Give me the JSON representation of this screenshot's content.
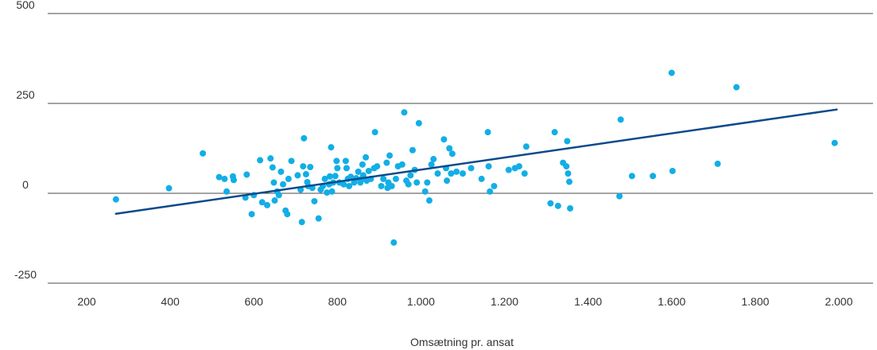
{
  "chart_data": {
    "type": "scatter",
    "title": "",
    "xlabel": "Omsætning pr. ansat",
    "ylabel": "",
    "xlim": [
      200,
      2000
    ],
    "ylim": [
      -250,
      500
    ],
    "x_ticks": [
      {
        "value": 200,
        "label": "200"
      },
      {
        "value": 400,
        "label": "400"
      },
      {
        "value": 600,
        "label": "600"
      },
      {
        "value": 800,
        "label": "800"
      },
      {
        "value": 1000,
        "label": "1.000"
      },
      {
        "value": 1200,
        "label": "1.200"
      },
      {
        "value": 1400,
        "label": "1.400"
      },
      {
        "value": 1600,
        "label": "1.600"
      },
      {
        "value": 1800,
        "label": "1.800"
      },
      {
        "value": 2000,
        "label": "2.000"
      }
    ],
    "y_ticks": [
      {
        "value": 500,
        "label": "500"
      },
      {
        "value": 250,
        "label": "250"
      },
      {
        "value": 0,
        "label": "0"
      },
      {
        "value": -250,
        "label": "-250"
      }
    ],
    "grid": "horizontal",
    "point_color": "#12aee6",
    "trend_color": "#0b4a8b",
    "trendline": {
      "x": [
        270,
        1995
      ],
      "y": [
        -57,
        233
      ]
    },
    "points": [
      [
        270,
        -17
      ],
      [
        397,
        14
      ],
      [
        478,
        111
      ],
      [
        517,
        45
      ],
      [
        530,
        40
      ],
      [
        535,
        5
      ],
      [
        550,
        47
      ],
      [
        552,
        37
      ],
      [
        580,
        -12
      ],
      [
        583,
        52
      ],
      [
        595,
        -58
      ],
      [
        600,
        -5
      ],
      [
        615,
        92
      ],
      [
        620,
        -25
      ],
      [
        632,
        -33
      ],
      [
        640,
        97
      ],
      [
        645,
        72
      ],
      [
        648,
        30
      ],
      [
        650,
        -20
      ],
      [
        656,
        5
      ],
      [
        660,
        -5
      ],
      [
        665,
        60
      ],
      [
        670,
        25
      ],
      [
        676,
        -48
      ],
      [
        680,
        -58
      ],
      [
        683,
        40
      ],
      [
        690,
        90
      ],
      [
        705,
        50
      ],
      [
        715,
        -80
      ],
      [
        712,
        10
      ],
      [
        718,
        75
      ],
      [
        720,
        153
      ],
      [
        725,
        53
      ],
      [
        728,
        31
      ],
      [
        730,
        20
      ],
      [
        735,
        73
      ],
      [
        740,
        15
      ],
      [
        745,
        -22
      ],
      [
        755,
        -70
      ],
      [
        760,
        10
      ],
      [
        765,
        20
      ],
      [
        770,
        40
      ],
      [
        775,
        2
      ],
      [
        780,
        25
      ],
      [
        782,
        47
      ],
      [
        785,
        128
      ],
      [
        787,
        5
      ],
      [
        790,
        30
      ],
      [
        795,
        48
      ],
      [
        798,
        90
      ],
      [
        800,
        70
      ],
      [
        805,
        30
      ],
      [
        815,
        25
      ],
      [
        820,
        90
      ],
      [
        822,
        70
      ],
      [
        825,
        40
      ],
      [
        828,
        20
      ],
      [
        832,
        46
      ],
      [
        840,
        30
      ],
      [
        845,
        42
      ],
      [
        850,
        60
      ],
      [
        855,
        30
      ],
      [
        858,
        40
      ],
      [
        860,
        80
      ],
      [
        862,
        50
      ],
      [
        868,
        100
      ],
      [
        870,
        35
      ],
      [
        875,
        62
      ],
      [
        880,
        40
      ],
      [
        888,
        70
      ],
      [
        890,
        170
      ],
      [
        895,
        75
      ],
      [
        905,
        20
      ],
      [
        910,
        40
      ],
      [
        918,
        85
      ],
      [
        920,
        15
      ],
      [
        922,
        30
      ],
      [
        925,
        105
      ],
      [
        930,
        20
      ],
      [
        935,
        -137
      ],
      [
        940,
        40
      ],
      [
        945,
        75
      ],
      [
        955,
        80
      ],
      [
        960,
        225
      ],
      [
        965,
        35
      ],
      [
        970,
        25
      ],
      [
        975,
        50
      ],
      [
        980,
        120
      ],
      [
        985,
        65
      ],
      [
        990,
        30
      ],
      [
        995,
        195
      ],
      [
        1010,
        5
      ],
      [
        1015,
        30
      ],
      [
        1020,
        -20
      ],
      [
        1025,
        80
      ],
      [
        1030,
        95
      ],
      [
        1040,
        55
      ],
      [
        1055,
        150
      ],
      [
        1060,
        70
      ],
      [
        1062,
        35
      ],
      [
        1068,
        125
      ],
      [
        1072,
        55
      ],
      [
        1075,
        110
      ],
      [
        1085,
        60
      ],
      [
        1100,
        55
      ],
      [
        1120,
        70
      ],
      [
        1145,
        40
      ],
      [
        1160,
        170
      ],
      [
        1162,
        75
      ],
      [
        1165,
        5
      ],
      [
        1175,
        20
      ],
      [
        1210,
        65
      ],
      [
        1225,
        70
      ],
      [
        1235,
        75
      ],
      [
        1248,
        55
      ],
      [
        1252,
        130
      ],
      [
        1310,
        -28
      ],
      [
        1320,
        170
      ],
      [
        1328,
        -35
      ],
      [
        1340,
        85
      ],
      [
        1348,
        75
      ],
      [
        1350,
        145
      ],
      [
        1352,
        55
      ],
      [
        1355,
        32
      ],
      [
        1357,
        -42
      ],
      [
        1475,
        -8
      ],
      [
        1478,
        205
      ],
      [
        1505,
        48
      ],
      [
        1555,
        48
      ],
      [
        1600,
        335
      ],
      [
        1602,
        62
      ],
      [
        1710,
        82
      ],
      [
        1755,
        295
      ],
      [
        1990,
        140
      ]
    ]
  }
}
